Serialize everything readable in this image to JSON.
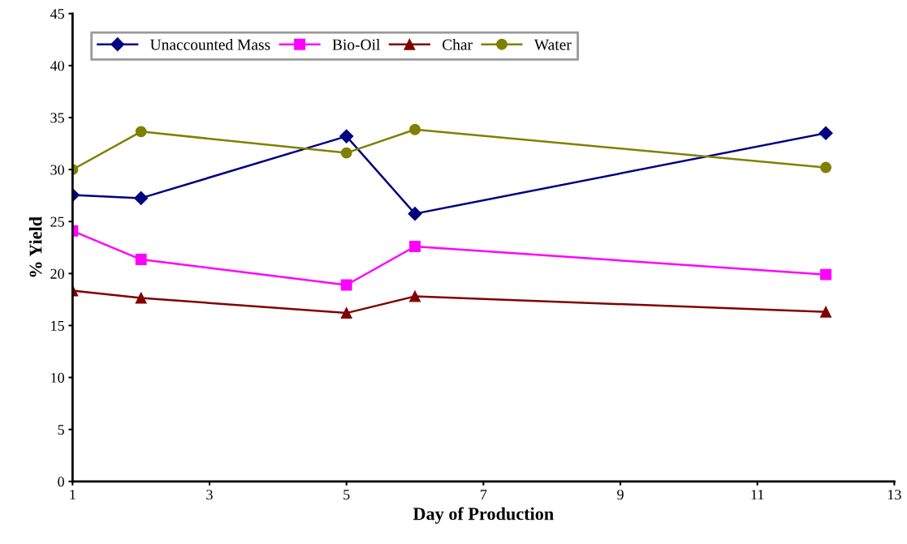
{
  "chart_data": {
    "type": "line",
    "xlabel": "Day of Production",
    "ylabel": "% Yield",
    "x": [
      1,
      2,
      5,
      6,
      12
    ],
    "series": [
      {
        "name": "Unaccounted Mass",
        "color": "#000080",
        "marker": "diamond",
        "values": [
          27.55,
          27.25,
          33.2,
          25.75,
          33.5
        ]
      },
      {
        "name": "Bio-Oil",
        "color": "#ff00ff",
        "marker": "square",
        "values": [
          24.1,
          21.35,
          18.9,
          22.6,
          19.9
        ]
      },
      {
        "name": "Char",
        "color": "#800000",
        "marker": "triangle",
        "values": [
          18.35,
          17.65,
          16.2,
          17.8,
          16.3
        ]
      },
      {
        "name": "Water",
        "color": "#808000",
        "marker": "circle",
        "values": [
          30.0,
          33.65,
          31.6,
          33.85,
          30.2
        ]
      }
    ],
    "xlim": [
      1,
      13
    ],
    "xticks": [
      1,
      3,
      5,
      7,
      9,
      11,
      13
    ],
    "ylim": [
      0,
      45
    ],
    "yticks": [
      0,
      5,
      10,
      15,
      20,
      25,
      30,
      35,
      40,
      45
    ],
    "grid": false,
    "legend": "top left",
    "line_style": "solid"
  }
}
